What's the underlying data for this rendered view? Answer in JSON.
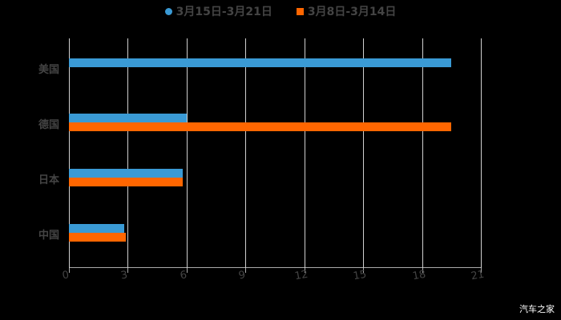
{
  "chart_data": {
    "type": "bar",
    "orientation": "horizontal",
    "title": "",
    "xlabel": "",
    "ylabel": "",
    "categories": [
      "美国",
      "德国",
      "日本",
      "中国"
    ],
    "series": [
      {
        "name": "3月15日-3月21日",
        "color": "#3a9ad5",
        "values": [
          19.5,
          6.0,
          5.8,
          2.8
        ]
      },
      {
        "name": "3月8日-3月14日",
        "color": "#ff6600",
        "values": [
          null,
          19.5,
          5.8,
          2.9
        ]
      }
    ],
    "xlim": [
      0,
      21
    ],
    "xticks": [
      "0",
      "3",
      "6",
      "9",
      "12",
      "15",
      "18",
      "21"
    ],
    "grid": true,
    "legend_position": "top"
  },
  "legend": {
    "s1": "3月15日-3月21日",
    "s2": "3月8日-3月14日"
  },
  "watermark": "汽车之家"
}
